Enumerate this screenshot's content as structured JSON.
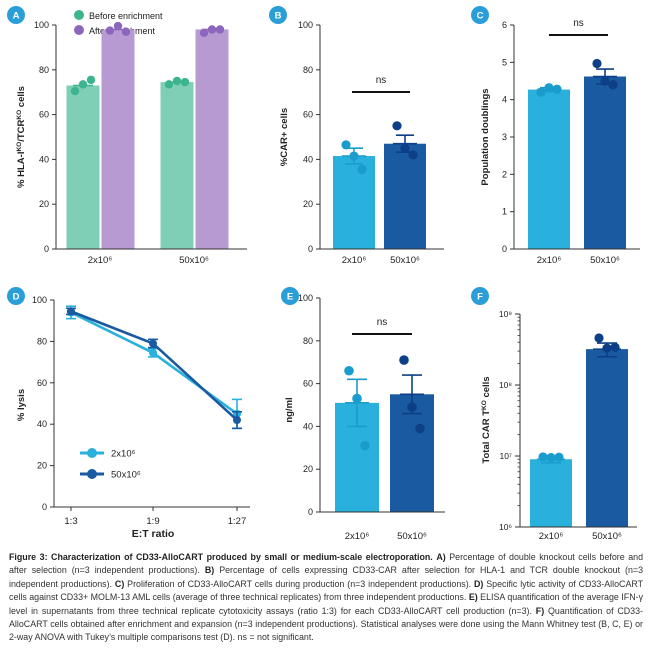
{
  "colors": {
    "teal": "#7ecfb6",
    "teal_dot": "#3cb48f",
    "purple": "#b89ad3",
    "purple_dot": "#8c65bd",
    "light_blue": "#2ab0dc",
    "light_blue_dot": "#1a9ccc",
    "dark_blue": "#1a5aa0",
    "dark_blue_dot": "#0d3f86",
    "badge": "#2a9ed6"
  },
  "chart_data": [
    {
      "panel": "A",
      "type": "bar",
      "ylabel": "% HLA-I^KO/TCR^KO cells",
      "categories": [
        "2x10⁶",
        "50x10⁶"
      ],
      "ylim": [
        0,
        100
      ],
      "yticks": [
        0,
        20,
        40,
        60,
        80,
        100
      ],
      "legend": [
        {
          "name": "Before enrichment",
          "color": "#3cb48f"
        },
        {
          "name": "After enrichment",
          "color": "#8c65bd"
        }
      ],
      "series": [
        {
          "name": "Before enrichment",
          "values": [
            73,
            74.5
          ],
          "points": [
            [
              70.5,
              73.5,
              75.5
            ],
            [
              73.5,
              75,
              74.5
            ]
          ]
        },
        {
          "name": "After enrichment",
          "values": [
            98,
            98
          ],
          "points": [
            [
              97.5,
              99.5,
              97
            ],
            [
              96.5,
              98,
              98
            ]
          ]
        }
      ]
    },
    {
      "panel": "B",
      "type": "bar",
      "ylabel": "%CAR+ cells",
      "categories": [
        "2x10⁶",
        "50x10⁶"
      ],
      "ylim": [
        0,
        100
      ],
      "yticks": [
        0,
        20,
        40,
        60,
        80,
        100
      ],
      "values": [
        41.5,
        47
      ],
      "errors": [
        3.5,
        3.8
      ],
      "points": [
        [
          46.5,
          41.5,
          35.5
        ],
        [
          55,
          45,
          42
        ]
      ],
      "annotation": "ns"
    },
    {
      "panel": "C",
      "type": "bar",
      "ylabel": "Population doublings",
      "categories": [
        "2x10⁶",
        "50x10⁶"
      ],
      "ylim": [
        0,
        6
      ],
      "yticks": [
        0,
        1,
        2,
        3,
        4,
        5,
        6
      ],
      "values": [
        4.27,
        4.62
      ],
      "errors": [
        0.05,
        0.2
      ],
      "points": [
        [
          4.2,
          4.32,
          4.28
        ],
        [
          4.97,
          4.5,
          4.4
        ]
      ],
      "annotation": "ns"
    },
    {
      "panel": "D",
      "type": "line",
      "xlabel": "E:T ratio",
      "ylabel": "% lysis",
      "x": [
        "1:3",
        "1:9",
        "1:27"
      ],
      "ylim": [
        0,
        100
      ],
      "yticks": [
        0,
        20,
        40,
        60,
        80,
        100
      ],
      "series": [
        {
          "name": "2x10⁶",
          "values": [
            94,
            74.5,
            45
          ],
          "errors": [
            3,
            2,
            7
          ]
        },
        {
          "name": "50x10⁶",
          "values": [
            94.5,
            79,
            42
          ],
          "errors": [
            1.5,
            2,
            4
          ]
        }
      ]
    },
    {
      "panel": "E",
      "type": "bar",
      "ylabel": "ng/ml",
      "categories": [
        "2x10⁶",
        "50x10⁶"
      ],
      "ylim": [
        0,
        100
      ],
      "yticks": [
        0,
        20,
        40,
        60,
        80,
        100
      ],
      "values": [
        51,
        55
      ],
      "errors": [
        11,
        9
      ],
      "points": [
        [
          66,
          53,
          31
        ],
        [
          71,
          49,
          39
        ]
      ],
      "annotation": "ns"
    },
    {
      "panel": "F",
      "type": "bar",
      "scale": "log",
      "ylabel": "Total CAR T^KO cells",
      "categories": [
        "2x10⁶",
        "50x10⁶"
      ],
      "ylim": [
        1000000,
        1000000000
      ],
      "ytick_labels": [
        "10⁶",
        "10⁷",
        "10⁸",
        "10⁹"
      ],
      "values": [
        9000000,
        320000000
      ],
      "errors_low": [
        8000000,
        250000000
      ],
      "errors_high": [
        10000000,
        390000000
      ],
      "points": [
        [
          9700000,
          9500000,
          9600000
        ],
        [
          460000000,
          330000000,
          340000000
        ]
      ]
    }
  ],
  "caption": {
    "bold_title": "Figure 3: Characterization of CD33-AlloCART produced by small or medium-scale electroporation.",
    "a_label": "A)",
    "a_text": "Percentage of double knockout cells before and after selection (n=3 independent productions).",
    "b_label": "B)",
    "b_text": "Percentage of cells expressing CD33-CAR after selection for HLA-1 and TCR double knockout (n=3 independent productions).",
    "c_label": "C)",
    "c_text": "Proliferation of CD33-AlloCART cells during production (n=3 independent productions).",
    "d_label": "D)",
    "d_text": "Specific lytic activity of CD33-AlloCART cells against CD33+ MOLM-13 AML cells (average of three technical replicates) from three independent productions.",
    "e_label": "E)",
    "e_text": "ELISA quantification of the average IFN-γ level in supernatants from three technical replicate cytotoxicity assays (ratio 1:3) for each CD33-AlloCART cell production (n=3).",
    "f_label": "F)",
    "f_text": "Quantification of CD33-AlloCART cells obtained after enrichment and expansion (n=3 independent productions). Statistical analyses were done using the Mann Whitney test (B, C, E) or 2-way ANOVA with Tukey’s multiple comparisons test (D). ns = not significant."
  }
}
